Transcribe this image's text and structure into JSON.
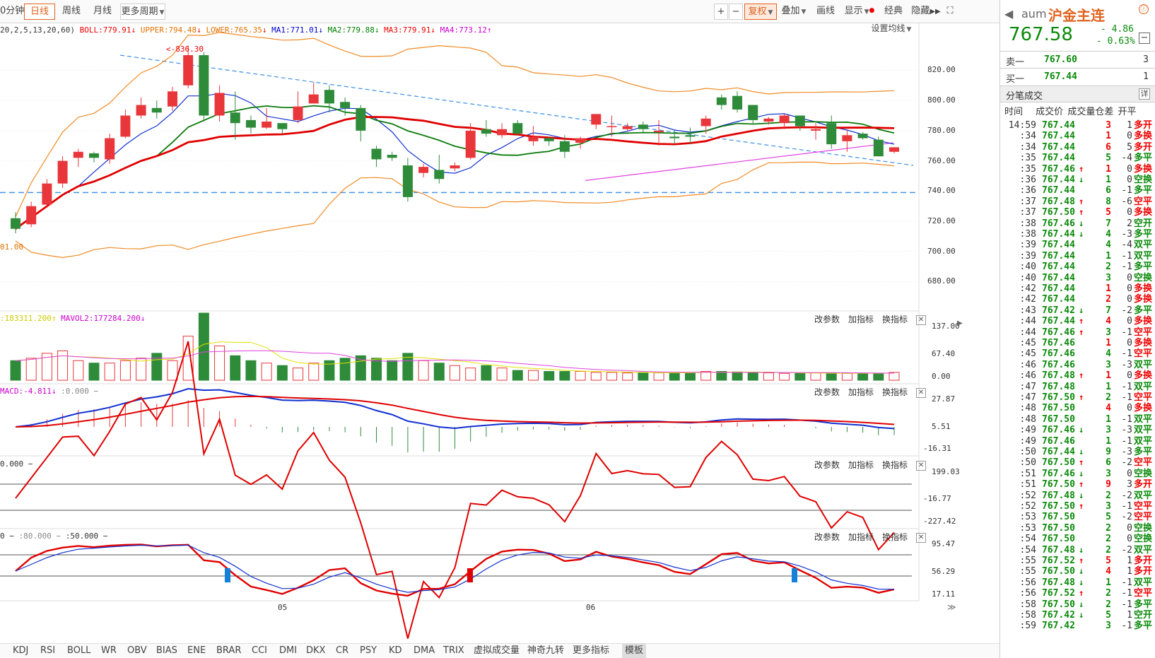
{
  "toolbar": {
    "tabs": [
      {
        "label": "0分钟",
        "active": false
      },
      {
        "label": "日线",
        "active": true
      },
      {
        "label": "周线",
        "active": false
      },
      {
        "label": "月线",
        "active": false
      },
      {
        "label": "更多周期",
        "active": false
      }
    ],
    "right_buttons": [
      "复权",
      "叠加",
      "画线",
      "显示",
      "经典",
      "隐藏"
    ],
    "plus": "+",
    "minus": "−"
  },
  "legend": {
    "params": "20,2,5,13,20,60)",
    "boll": "BOLL:779.91",
    "upper": "UPPER:794.48",
    "lower": "LOWER:765.35",
    "ma1": "MA1:771.01",
    "ma2": "MA2:779.88",
    "ma3": "MA3:779.91",
    "ma4": "MA4:773.12",
    "settings": "设置均线"
  },
  "main_chart": {
    "high_label": "836.30",
    "low_label": "01.00",
    "y_ticks": [
      "820.00",
      "800.00",
      "780.00",
      "760.00",
      "740.00",
      "720.00",
      "700.00",
      "680.00"
    ]
  },
  "volume": {
    "mavol1": ":183311.200",
    "mavol2": "MAVOL2:177284.200",
    "y_ticks": [
      "137.00",
      "67.40",
      "0.00"
    ]
  },
  "macd": {
    "label": "MACD:-4.811",
    "extra": ":0.000",
    "y_ticks": [
      "27.87",
      "5.51",
      "-16.31"
    ]
  },
  "cci": {
    "label": "0.000",
    "y_ticks": [
      "199.03",
      "-16.77",
      "-227.42"
    ]
  },
  "kdj": {
    "label": "0",
    ":80": ":80.000",
    ":50": ":50.000",
    "y_ticks": [
      "95.47",
      "56.29",
      "17.11"
    ]
  },
  "panel_tools": [
    "改参数",
    "加指标",
    "换指标"
  ],
  "x_labels": [
    "05",
    "06"
  ],
  "bottom_tabs": [
    "KDJ",
    "RSI",
    "BOLL",
    "WR",
    "OBV",
    "BIAS",
    "ENE",
    "BRAR",
    "CCI",
    "DMI",
    "DKX",
    "CR",
    "PSY",
    "KD",
    "DMA",
    "TRIX",
    "虚拟成交量",
    "神奇九转",
    "更多指标",
    "模板"
  ],
  "quote": {
    "code": "aum",
    "name": "沪金主连",
    "price": "767.58",
    "change": "- 4.86",
    "pct": "- 0.63%",
    "sell_label": "卖一",
    "sell_price": "767.60",
    "sell_vol": "3",
    "buy_label": "买一",
    "buy_price": "767.44",
    "buy_vol": "1",
    "trades_title": "分笔成交",
    "detail": "详",
    "headers": [
      "时间",
      "成交价",
      "成交量",
      "仓差",
      "开平"
    ]
  },
  "trades": [
    [
      "14:59",
      "767.44",
      "",
      "3",
      "1",
      "多开"
    ],
    [
      ":34",
      "767.44",
      "",
      "1",
      "0",
      "多换"
    ],
    [
      ":34",
      "767.44",
      "",
      "6",
      "5",
      "多开"
    ],
    [
      ":35",
      "767.44",
      "",
      "5",
      "-4",
      "多平"
    ],
    [
      ":35",
      "767.46",
      "up",
      "1",
      "0",
      "多换"
    ],
    [
      ":36",
      "767.44",
      "down",
      "1",
      "0",
      "空换"
    ],
    [
      ":36",
      "767.44",
      "",
      "6",
      "-1",
      "多平"
    ],
    [
      ":37",
      "767.48",
      "up",
      "8",
      "-6",
      "空平"
    ],
    [
      ":37",
      "767.50",
      "up",
      "5",
      "0",
      "多换"
    ],
    [
      ":38",
      "767.46",
      "down",
      "7",
      "2",
      "空开"
    ],
    [
      ":38",
      "767.44",
      "down",
      "4",
      "-3",
      "多平"
    ],
    [
      ":39",
      "767.44",
      "",
      "4",
      "-4",
      "双平"
    ],
    [
      ":39",
      "767.44",
      "",
      "1",
      "-1",
      "双平"
    ],
    [
      ":40",
      "767.44",
      "",
      "2",
      "-1",
      "多平"
    ],
    [
      ":40",
      "767.44",
      "",
      "3",
      "0",
      "空换"
    ],
    [
      ":42",
      "767.44",
      "",
      "1",
      "0",
      "多换"
    ],
    [
      ":42",
      "767.44",
      "",
      "2",
      "0",
      "多换"
    ],
    [
      ":43",
      "767.42",
      "down",
      "7",
      "-2",
      "多平"
    ],
    [
      ":44",
      "767.44",
      "up",
      "4",
      "0",
      "多换"
    ],
    [
      ":44",
      "767.46",
      "up",
      "3",
      "-1",
      "空平"
    ],
    [
      ":45",
      "767.46",
      "",
      "1",
      "0",
      "多换"
    ],
    [
      ":45",
      "767.46",
      "",
      "4",
      "-1",
      "空平"
    ],
    [
      ":46",
      "767.46",
      "",
      "3",
      "-3",
      "双平"
    ],
    [
      ":46",
      "767.48",
      "up",
      "1",
      "0",
      "多换"
    ],
    [
      ":47",
      "767.48",
      "",
      "1",
      "-1",
      "双平"
    ],
    [
      ":47",
      "767.50",
      "up",
      "2",
      "-1",
      "空平"
    ],
    [
      ":48",
      "767.50",
      "",
      "4",
      "0",
      "多换"
    ],
    [
      ":48",
      "767.50",
      "",
      "1",
      "-1",
      "双平"
    ],
    [
      ":49",
      "767.46",
      "down",
      "3",
      "-3",
      "双平"
    ],
    [
      ":49",
      "767.46",
      "",
      "1",
      "-1",
      "双平"
    ],
    [
      ":50",
      "767.44",
      "down",
      "9",
      "-3",
      "多平"
    ],
    [
      ":50",
      "767.50",
      "up",
      "6",
      "-2",
      "空平"
    ],
    [
      ":51",
      "767.46",
      "down",
      "3",
      "0",
      "空换"
    ],
    [
      ":51",
      "767.50",
      "up",
      "9",
      "3",
      "多开"
    ],
    [
      ":52",
      "767.48",
      "down",
      "2",
      "-2",
      "双平"
    ],
    [
      ":52",
      "767.50",
      "up",
      "3",
      "-1",
      "空平"
    ],
    [
      ":53",
      "767.50",
      "",
      "5",
      "-2",
      "空平"
    ],
    [
      ":53",
      "767.50",
      "",
      "2",
      "0",
      "空换"
    ],
    [
      ":54",
      "767.50",
      "",
      "2",
      "0",
      "空换"
    ],
    [
      ":54",
      "767.48",
      "down",
      "2",
      "-2",
      "双平"
    ],
    [
      ":55",
      "767.52",
      "up",
      "5",
      "1",
      "多开"
    ],
    [
      ":55",
      "767.50",
      "down",
      "4",
      "1",
      "多开"
    ],
    [
      ":56",
      "767.48",
      "down",
      "1",
      "-1",
      "双平"
    ],
    [
      ":56",
      "767.52",
      "up",
      "2",
      "-1",
      "空平"
    ],
    [
      ":58",
      "767.50",
      "down",
      "2",
      "-1",
      "多平"
    ],
    [
      ":58",
      "767.42",
      "down",
      "5",
      "1",
      "空开"
    ],
    [
      ":59",
      "767.42",
      "",
      "3",
      "-1",
      "多平"
    ]
  ],
  "chart_data": {
    "type": "candlestick",
    "candles": [
      [
        722,
        715,
        726,
        712
      ],
      [
        718,
        730,
        733,
        716
      ],
      [
        731,
        745,
        748,
        729
      ],
      [
        745,
        760,
        763,
        742
      ],
      [
        762,
        766,
        768,
        756
      ],
      [
        765,
        762,
        766,
        759
      ],
      [
        761,
        775,
        778,
        758
      ],
      [
        776,
        790,
        794,
        775
      ],
      [
        790,
        797,
        802,
        788
      ],
      [
        795,
        792,
        800,
        788
      ],
      [
        796,
        806,
        809,
        793
      ],
      [
        810,
        830,
        836.3,
        808
      ],
      [
        830,
        790,
        832,
        786
      ],
      [
        790,
        805,
        810,
        786
      ],
      [
        792,
        785,
        806,
        774
      ],
      [
        787,
        782,
        790,
        778
      ],
      [
        782,
        786,
        795,
        781
      ],
      [
        785,
        781,
        785,
        778
      ],
      [
        787,
        796,
        806,
        785
      ],
      [
        798,
        804,
        812,
        798
      ],
      [
        807,
        798,
        810,
        792
      ],
      [
        799,
        795,
        802,
        790
      ],
      [
        795,
        780,
        797,
        773
      ],
      [
        768,
        761,
        770,
        756
      ],
      [
        764,
        762,
        766,
        760
      ],
      [
        757,
        736,
        762,
        733
      ],
      [
        752,
        756,
        758,
        749
      ],
      [
        754,
        748,
        764,
        745
      ],
      [
        755,
        757,
        759,
        753
      ],
      [
        762,
        780,
        785,
        761
      ],
      [
        781,
        778,
        787,
        776
      ],
      [
        777,
        781,
        785,
        775
      ],
      [
        785,
        778,
        787,
        777
      ],
      [
        773,
        776,
        783,
        770
      ],
      [
        775,
        773,
        776,
        770
      ],
      [
        773,
        766,
        777,
        762
      ],
      [
        772,
        775,
        776,
        768
      ],
      [
        784,
        791,
        791,
        781
      ],
      [
        783,
        783,
        790,
        776
      ],
      [
        781,
        783,
        785,
        780
      ],
      [
        784,
        781,
        786,
        779
      ],
      [
        779,
        780,
        787,
        770
      ],
      [
        776,
        775,
        780,
        771
      ],
      [
        777,
        776,
        782,
        771
      ],
      [
        783,
        788,
        790,
        778
      ],
      [
        802,
        797,
        804,
        794
      ],
      [
        803,
        794,
        806,
        792
      ],
      [
        797,
        787,
        797,
        784
      ],
      [
        786,
        788,
        789,
        784
      ],
      [
        785,
        790,
        791,
        781
      ],
      [
        790,
        783,
        790,
        780
      ],
      [
        780,
        781,
        785,
        774
      ],
      [
        785,
        771,
        790,
        768
      ],
      [
        773,
        777,
        780,
        766
      ],
      [
        778,
        775,
        779,
        774
      ],
      [
        774,
        763,
        776,
        767
      ],
      [
        766,
        769,
        769,
        765
      ]
    ],
    "y_axis": [
      670,
      845
    ]
  }
}
